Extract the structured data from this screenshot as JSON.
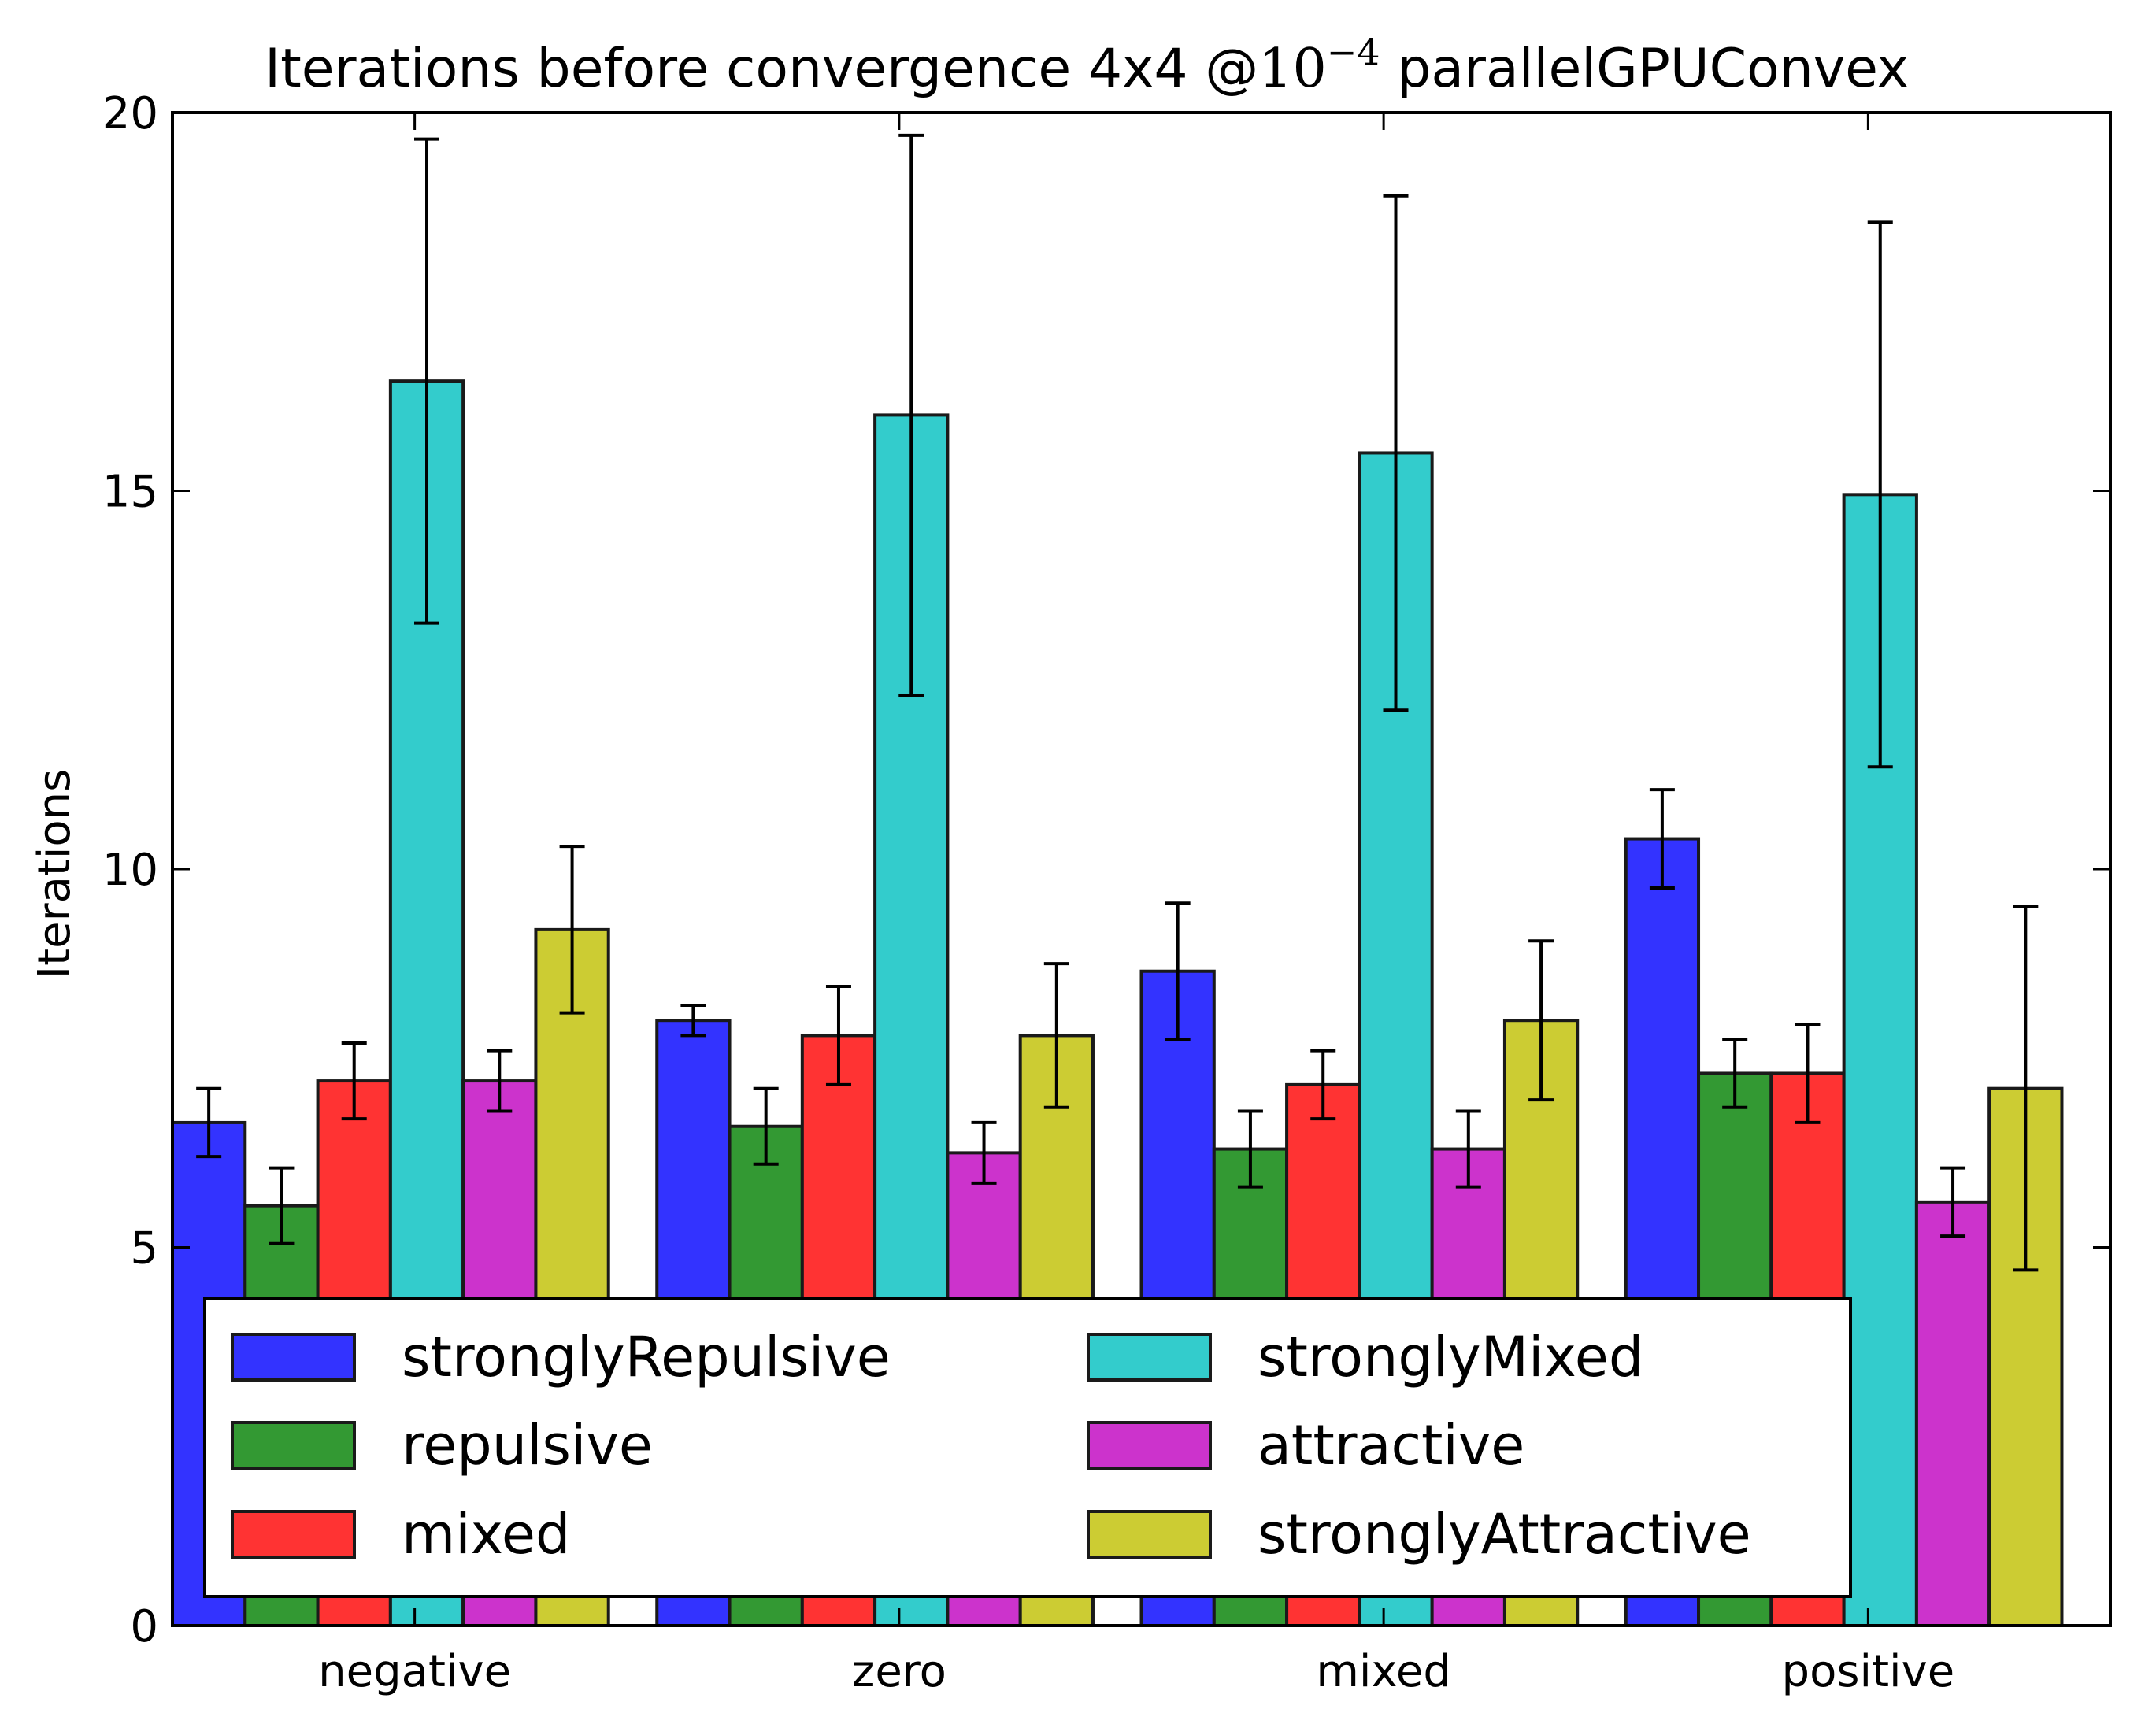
{
  "chart_data": {
    "type": "bar",
    "title": {
      "prefix": "Iterations before convergence 4x4 @",
      "math_base": "10",
      "math_exponent": "−4",
      "suffix": " parallelGPUConvex"
    },
    "xlabel": "",
    "ylabel": "Iterations",
    "ylim": [
      0,
      20
    ],
    "yticks": [
      "0",
      "5",
      "10",
      "15",
      "20"
    ],
    "categories": [
      "negative",
      "zero",
      "mixed",
      "positive"
    ],
    "series": [
      {
        "name": "stronglyRepulsive",
        "color": "#3333ff",
        "values": [
          6.65,
          8.0,
          8.65,
          10.4
        ],
        "errors": [
          0.45,
          0.2,
          0.9,
          0.65
        ]
      },
      {
        "name": "repulsive",
        "color": "#339933",
        "values": [
          5.55,
          6.6,
          6.3,
          7.3
        ],
        "errors": [
          0.5,
          0.5,
          0.5,
          0.45
        ]
      },
      {
        "name": "mixed",
        "color": "#ff3333",
        "values": [
          7.2,
          7.8,
          7.15,
          7.3
        ],
        "errors": [
          0.5,
          0.65,
          0.45,
          0.65
        ]
      },
      {
        "name": "stronglyMixed",
        "color": "#33cccc",
        "values": [
          16.45,
          16.0,
          15.5,
          14.95
        ],
        "errors": [
          3.2,
          3.7,
          3.4,
          3.6
        ]
      },
      {
        "name": "attractive",
        "color": "#cc33cc",
        "values": [
          7.2,
          6.25,
          6.3,
          5.6
        ],
        "errors": [
          0.4,
          0.4,
          0.5,
          0.45
        ]
      },
      {
        "name": "stronglyAttractive",
        "color": "#cccc33",
        "values": [
          9.2,
          7.8,
          8.0,
          7.1
        ],
        "errors": [
          1.1,
          0.95,
          1.05,
          2.4
        ]
      }
    ],
    "legend": {
      "placement": "lower-left",
      "columns": 2
    },
    "grid": false
  }
}
